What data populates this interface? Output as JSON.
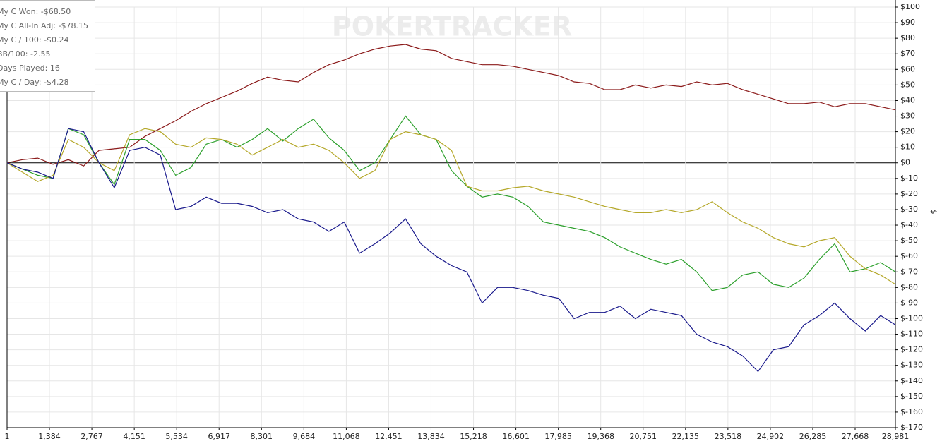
{
  "chart_data": {
    "type": "line",
    "watermark": "POKERTRACKER",
    "y_label": "$",
    "stats": [
      "My C Won: -$68.50",
      "My C All-In Adj: -$78.15",
      "My C / 100: -$0.24",
      "BB/100: -2.55",
      "Days Played: 16",
      "My C / Day: -$4.28"
    ],
    "x": [
      1,
      500,
      1000,
      1500,
      2000,
      2500,
      3000,
      3500,
      4000,
      4500,
      5000,
      5500,
      6000,
      6500,
      7000,
      7500,
      8000,
      8500,
      9000,
      9500,
      10000,
      10500,
      11000,
      11500,
      12000,
      12500,
      13000,
      13500,
      14000,
      14500,
      15000,
      15500,
      16000,
      16500,
      17000,
      17500,
      18000,
      18500,
      19000,
      19500,
      20000,
      20500,
      21000,
      21500,
      22000,
      22500,
      23000,
      23500,
      24000,
      24500,
      25000,
      25500,
      26000,
      26500,
      27000,
      27500,
      28000,
      28500,
      28981
    ],
    "series": [
      {
        "color": "#8b1a1a",
        "values": [
          0,
          2,
          3,
          -1,
          2,
          -2,
          8,
          9,
          10,
          17,
          22,
          27,
          33,
          38,
          42,
          46,
          51,
          55,
          53,
          52,
          58,
          63,
          66,
          70,
          73,
          75,
          76,
          73,
          72,
          67,
          65,
          63,
          63,
          62,
          60,
          58,
          56,
          52,
          51,
          47,
          47,
          50,
          48,
          50,
          49,
          52,
          50,
          51,
          47,
          44,
          41,
          38,
          38,
          39,
          36,
          38,
          38,
          36,
          34
        ]
      },
      {
        "color": "#2ca02c",
        "values": [
          0,
          -4,
          -8,
          -10,
          22,
          18,
          0,
          -14,
          15,
          15,
          8,
          -8,
          -3,
          12,
          15,
          10,
          15,
          22,
          14,
          22,
          28,
          16,
          8,
          -5,
          0,
          15,
          30,
          18,
          15,
          -5,
          -15,
          -22,
          -20,
          -22,
          -28,
          -38,
          -40,
          -42,
          -44,
          -48,
          -54,
          -58,
          -62,
          -65,
          -62,
          -70,
          -82,
          -80,
          -72,
          -70,
          -78,
          -80,
          -74,
          -62,
          -52,
          -70,
          -68,
          -64,
          -70
        ]
      },
      {
        "color": "#b5a82a",
        "values": [
          0,
          -6,
          -12,
          -8,
          15,
          10,
          0,
          -5,
          18,
          22,
          20,
          12,
          10,
          16,
          15,
          12,
          5,
          10,
          15,
          10,
          12,
          8,
          0,
          -10,
          -5,
          15,
          20,
          18,
          15,
          8,
          -15,
          -18,
          -18,
          -16,
          -15,
          -18,
          -20,
          -22,
          -25,
          -28,
          -30,
          -32,
          -32,
          -30,
          -32,
          -30,
          -25,
          -32,
          -38,
          -42,
          -48,
          -52,
          -54,
          -50,
          -48,
          -60,
          -68,
          -72,
          -78
        ]
      },
      {
        "color": "#1a1a8c",
        "values": [
          0,
          -4,
          -6,
          -10,
          22,
          20,
          0,
          -16,
          8,
          10,
          5,
          -30,
          -28,
          -22,
          -26,
          -26,
          -28,
          -32,
          -30,
          -36,
          -38,
          -44,
          -38,
          -58,
          -52,
          -45,
          -36,
          -52,
          -60,
          -66,
          -70,
          -90,
          -80,
          -80,
          -82,
          -85,
          -87,
          -100,
          -96,
          -96,
          -92,
          -100,
          -94,
          -96,
          -98,
          -110,
          -115,
          -118,
          -124,
          -134,
          -120,
          -118,
          -104,
          -98,
          -90,
          -100,
          -108,
          -98,
          -104
        ]
      }
    ],
    "xlim": [
      1,
      28981
    ],
    "xticks": [
      1,
      {
        "value": 1384,
        "label": "1,384"
      },
      {
        "value": 2767,
        "label": "2,767"
      },
      {
        "value": 4151,
        "label": "4,151"
      },
      {
        "value": 5534,
        "label": "5,534"
      },
      {
        "value": 6917,
        "label": "6,917"
      },
      {
        "value": 8301,
        "label": "8,301"
      },
      {
        "value": 9684,
        "label": "9,684"
      },
      {
        "value": 11068,
        "label": "11,068"
      },
      {
        "value": 12451,
        "label": "12,451"
      },
      {
        "value": 13834,
        "label": "13,834"
      },
      {
        "value": 15218,
        "label": "15,218"
      },
      {
        "value": 16601,
        "label": "16,601"
      },
      {
        "value": 17985,
        "label": "17,985"
      },
      {
        "value": 19368,
        "label": "19,368"
      },
      {
        "value": 20751,
        "label": "20,751"
      },
      {
        "value": 22135,
        "label": "22,135"
      },
      {
        "value": 23518,
        "label": "23,518"
      },
      {
        "value": 24902,
        "label": "24,902"
      },
      {
        "value": 26285,
        "label": "26,285"
      },
      {
        "value": 27668,
        "label": "27,668"
      },
      {
        "value": 28981,
        "label": "28,981"
      }
    ],
    "ylim": [
      -170,
      100
    ],
    "yticks": [
      {
        "value": 100,
        "label": "$100"
      },
      {
        "value": 90,
        "label": "$90"
      },
      {
        "value": 80,
        "label": "$80"
      },
      {
        "value": 70,
        "label": "$70"
      },
      {
        "value": 60,
        "label": "$60"
      },
      {
        "value": 50,
        "label": "$50"
      },
      {
        "value": 40,
        "label": "$40"
      },
      {
        "value": 30,
        "label": "$30"
      },
      {
        "value": 20,
        "label": "$20"
      },
      {
        "value": 10,
        "label": "$10"
      },
      {
        "value": 0,
        "label": "$0"
      },
      {
        "value": -10,
        "label": "$-10"
      },
      {
        "value": -20,
        "label": "$-20"
      },
      {
        "value": -30,
        "label": "$-30"
      },
      {
        "value": -40,
        "label": "$-40"
      },
      {
        "value": -50,
        "label": "$-50"
      },
      {
        "value": -60,
        "label": "$-60"
      },
      {
        "value": -70,
        "label": "$-70"
      },
      {
        "value": -80,
        "label": "$-80"
      },
      {
        "value": -90,
        "label": "$-90"
      },
      {
        "value": -100,
        "label": "$-100"
      },
      {
        "value": -110,
        "label": "$-110"
      },
      {
        "value": -120,
        "label": "$-120"
      },
      {
        "value": -130,
        "label": "$-130"
      },
      {
        "value": -140,
        "label": "$-140"
      },
      {
        "value": -150,
        "label": "$-150"
      },
      {
        "value": -160,
        "label": "$-160"
      },
      {
        "value": -170,
        "label": "$-170"
      }
    ],
    "grid": true
  }
}
